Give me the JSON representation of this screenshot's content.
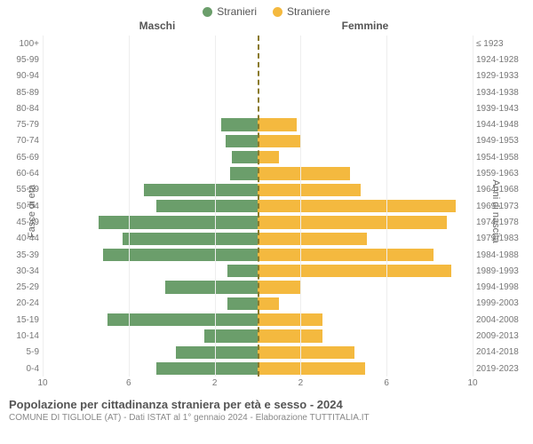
{
  "legend": {
    "male_label": "Stranieri",
    "female_label": "Straniere",
    "male_color": "#6b9e6b",
    "female_color": "#f4b93f"
  },
  "headers": {
    "left": "Maschi",
    "right": "Femmine"
  },
  "axis_labels": {
    "left": "Fasce di età",
    "right": "Anni di nascita"
  },
  "chart": {
    "type": "population-pyramid",
    "xmax": 10,
    "xticks": [
      10,
      6,
      2,
      2,
      6,
      10
    ],
    "male_color": "#6b9e6b",
    "female_color": "#f4b93f",
    "grid_color": "#eeeeee",
    "centerline_color": "#8a7a2a",
    "background_color": "#ffffff",
    "label_fontsize": 10,
    "rows": [
      {
        "age": "100+",
        "birth": "≤ 1923",
        "m": 0,
        "f": 0
      },
      {
        "age": "95-99",
        "birth": "1924-1928",
        "m": 0,
        "f": 0
      },
      {
        "age": "90-94",
        "birth": "1929-1933",
        "m": 0,
        "f": 0
      },
      {
        "age": "85-89",
        "birth": "1934-1938",
        "m": 0,
        "f": 0
      },
      {
        "age": "80-84",
        "birth": "1939-1943",
        "m": 0,
        "f": 0
      },
      {
        "age": "75-79",
        "birth": "1944-1948",
        "m": 1.7,
        "f": 1.8
      },
      {
        "age": "70-74",
        "birth": "1949-1953",
        "m": 1.5,
        "f": 2.0
      },
      {
        "age": "65-69",
        "birth": "1954-1958",
        "m": 1.2,
        "f": 1.0
      },
      {
        "age": "60-64",
        "birth": "1959-1963",
        "m": 1.3,
        "f": 4.3
      },
      {
        "age": "55-59",
        "birth": "1964-1968",
        "m": 5.3,
        "f": 4.8
      },
      {
        "age": "50-54",
        "birth": "1969-1973",
        "m": 4.7,
        "f": 9.2
      },
      {
        "age": "45-49",
        "birth": "1974-1978",
        "m": 7.4,
        "f": 8.8
      },
      {
        "age": "40-44",
        "birth": "1979-1983",
        "m": 6.3,
        "f": 5.1
      },
      {
        "age": "35-39",
        "birth": "1984-1988",
        "m": 7.2,
        "f": 8.2
      },
      {
        "age": "30-34",
        "birth": "1989-1993",
        "m": 1.4,
        "f": 9.0
      },
      {
        "age": "25-29",
        "birth": "1994-1998",
        "m": 4.3,
        "f": 2.0
      },
      {
        "age": "20-24",
        "birth": "1999-2003",
        "m": 1.4,
        "f": 1.0
      },
      {
        "age": "15-19",
        "birth": "2004-2008",
        "m": 7.0,
        "f": 3.0
      },
      {
        "age": "10-14",
        "birth": "2009-2013",
        "m": 2.5,
        "f": 3.0
      },
      {
        "age": "5-9",
        "birth": "2014-2018",
        "m": 3.8,
        "f": 4.5
      },
      {
        "age": "0-4",
        "birth": "2019-2023",
        "m": 4.7,
        "f": 5.0
      }
    ]
  },
  "footer": {
    "title": "Popolazione per cittadinanza straniera per età e sesso - 2024",
    "subtitle": "COMUNE DI TIGLIOLE (AT) - Dati ISTAT al 1° gennaio 2024 - Elaborazione TUTTITALIA.IT"
  }
}
